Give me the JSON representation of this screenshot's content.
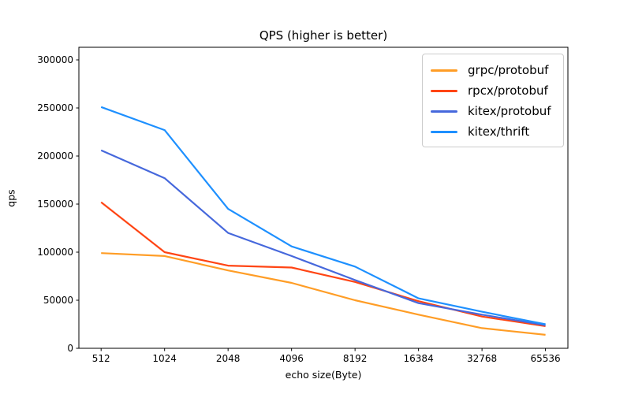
{
  "figure": {
    "title": "QPS (higher is better)",
    "xlabel": "echo size(Byte)",
    "ylabel": "qps"
  },
  "chart_data": {
    "type": "line",
    "title": "QPS (higher is better)",
    "xlabel": "echo size(Byte)",
    "ylabel": "qps",
    "categories": [
      "512",
      "1024",
      "2048",
      "4096",
      "8192",
      "16384",
      "32768",
      "65536"
    ],
    "y_ticks": [
      0,
      50000,
      100000,
      150000,
      200000,
      250000,
      300000
    ],
    "ylim": [
      0,
      313000
    ],
    "grid": false,
    "legend_position": "upper right",
    "series": [
      {
        "name": "grpc/protobuf",
        "color": "#ff9d26",
        "values": [
          99000,
          96000,
          81000,
          68000,
          50000,
          35000,
          21000,
          14000
        ]
      },
      {
        "name": "rpcx/protobuf",
        "color": "#ff4514",
        "values": [
          152000,
          100000,
          86000,
          84000,
          69000,
          49000,
          33000,
          23000
        ]
      },
      {
        "name": "kitex/protobuf",
        "color": "#4668dc",
        "values": [
          206000,
          177000,
          120000,
          96000,
          71000,
          47000,
          35000,
          24000
        ]
      },
      {
        "name": "kitex/thrift",
        "color": "#1e90ff",
        "values": [
          251000,
          227000,
          145000,
          106000,
          85000,
          52000,
          38000,
          25000
        ]
      }
    ]
  }
}
